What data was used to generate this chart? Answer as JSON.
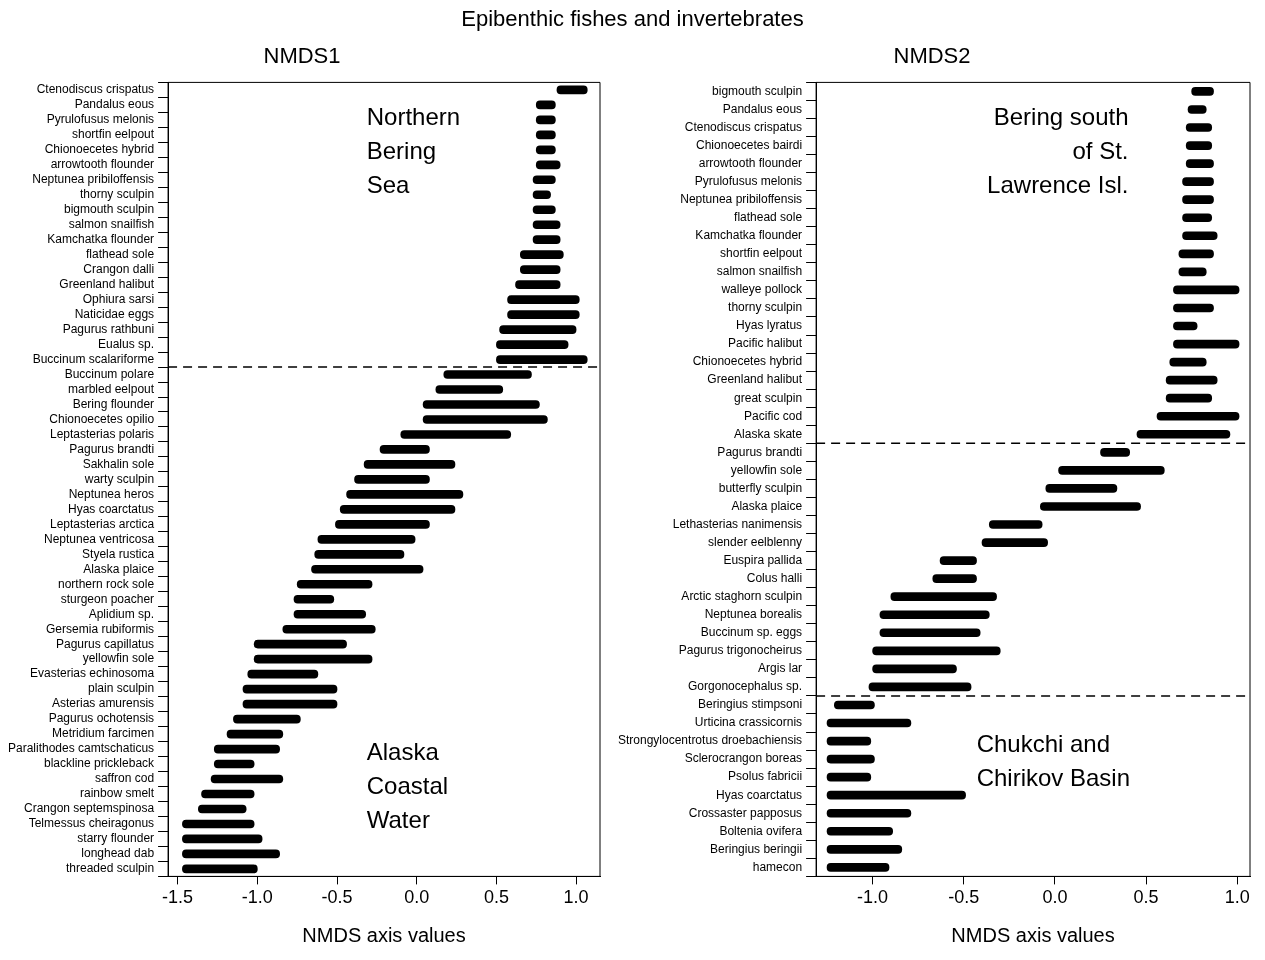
{
  "chart_data": [
    {
      "type": "bar",
      "orientation": "horizontal",
      "title": "NMDS1",
      "subtitle": "Epibenthic fishes and invertebrates",
      "xlabel": "NMDS axis values",
      "color": "#000000",
      "grid": false,
      "legend": false,
      "categories": [
        "Ctenodiscus crispatus",
        "Pandalus eous",
        "Pyrulofusus melonis",
        "shortfin eelpout",
        "Chionoecetes hybrid",
        "arrowtooth flounder",
        "Neptunea pribiloffensis",
        "thorny sculpin",
        "bigmouth sculpin",
        "salmon snailfish",
        "Kamchatka flounder",
        "flathead sole",
        "Crangon dalli",
        "Greenland halibut",
        "Ophiura sarsi",
        "Naticidae eggs",
        "Pagurus rathbuni",
        "Eualus sp.",
        "Buccinum scalariforme",
        "Buccinum polare",
        "marbled eelpout",
        "Bering flounder",
        "Chionoecetes opilio",
        "Leptasterias polaris",
        "Pagurus brandti",
        "Sakhalin sole",
        "warty sculpin",
        "Neptunea heros",
        "Hyas coarctatus",
        "Leptasterias arctica",
        "Neptunea ventricosa",
        "Styela rustica",
        "Alaska plaice",
        "northern rock sole",
        "sturgeon poacher",
        "Aplidium sp.",
        "Gersemia rubiformis",
        "Pagurus capillatus",
        "yellowfin sole",
        "Evasterias echinosoma",
        "plain sculpin",
        "Asterias amurensis",
        "Pagurus ochotensis",
        "Metridium farcimen",
        "Paralithodes camtschaticus",
        "blackline prickleback",
        "saffron cod",
        "rainbow smelt",
        "Crangon septemspinosa",
        "Telmessus cheiragonus",
        "starry flounder",
        "longhead dab",
        "threaded sculpin"
      ],
      "base": [
        0.88,
        0.75,
        0.75,
        0.75,
        0.75,
        0.75,
        0.73,
        0.73,
        0.73,
        0.73,
        0.73,
        0.65,
        0.65,
        0.62,
        0.57,
        0.57,
        0.52,
        0.5,
        0.5,
        0.17,
        0.12,
        0.04,
        0.04,
        -0.1,
        -0.23,
        -0.33,
        -0.39,
        -0.44,
        -0.48,
        -0.51,
        -0.62,
        -0.64,
        -0.66,
        -0.75,
        -0.77,
        -0.77,
        -0.84,
        -1.02,
        -1.02,
        -1.06,
        -1.09,
        -1.09,
        -1.15,
        -1.19,
        -1.27,
        -1.27,
        -1.29,
        -1.35,
        -1.37,
        -1.47,
        -1.47,
        -1.47,
        -1.47
      ],
      "values": [
        0.19,
        0.12,
        0.12,
        0.12,
        0.12,
        0.15,
        0.14,
        0.11,
        0.14,
        0.17,
        0.17,
        0.27,
        0.25,
        0.28,
        0.45,
        0.45,
        0.48,
        0.45,
        0.57,
        0.55,
        0.42,
        0.73,
        0.78,
        0.69,
        0.31,
        0.57,
        0.47,
        0.73,
        0.72,
        0.59,
        0.61,
        0.56,
        0.7,
        0.47,
        0.25,
        0.45,
        0.58,
        0.58,
        0.74,
        0.44,
        0.59,
        0.59,
        0.42,
        0.35,
        0.41,
        0.25,
        0.45,
        0.33,
        0.3,
        0.45,
        0.5,
        0.61,
        0.47
      ],
      "xlim": [
        -1.56,
        1.15
      ],
      "xticks": [
        -1.5,
        {
          "value": -1,
          "label": "-1.0"
        },
        -0.5,
        {
          "value": 0,
          "label": "0.0"
        },
        0.5,
        {
          "value": 1,
          "label": "1.0"
        }
      ],
      "ref_lines": [
        {
          "axis": "y",
          "value": "Buccinum scalariforme",
          "line_style": "dashed"
        }
      ],
      "annotations": [
        "Northern\nBering\nSea",
        "Alaska\nCoastal\nWater"
      ]
    },
    {
      "type": "bar",
      "orientation": "horizontal",
      "title": "NMDS2",
      "xlabel": "NMDS axis values",
      "color": "#000000",
      "grid": false,
      "legend": false,
      "categories": [
        "bigmouth sculpin",
        "Pandalus eous",
        "Ctenodiscus crispatus",
        "Chionoecetes bairdi",
        "arrowtooth flounder",
        "Pyrulofusus melonis",
        "Neptunea pribiloffensis",
        "flathead sole",
        "Kamchatka flounder",
        "shortfin eelpout",
        "salmon snailfish",
        "walleye pollock",
        "thorny sculpin",
        "Hyas lyratus",
        "Pacific halibut",
        "Chionoecetes hybrid",
        "Greenland halibut",
        "great sculpin",
        "Pacific cod",
        "Alaska skate",
        "Pagurus brandti",
        "yellowfin sole",
        "butterfly sculpin",
        "Alaska plaice",
        "Lethasterias nanimensis",
        "slender eelblenny",
        "Euspira pallida",
        "Colus halli",
        "Arctic staghorn sculpin",
        "Neptunea borealis",
        "Buccinum sp. eggs",
        "Pagurus trigonocheirus",
        "Argis lar",
        "Gorgonocephalus sp.",
        "Beringius stimpsoni",
        "Urticina crassicornis",
        "Strongylocentrotus droebachiensis",
        "Sclerocrangon boreas",
        "Psolus fabricii",
        "Hyas coarctatus",
        "Crossaster papposus",
        "Boltenia ovifera",
        "Beringius beringii",
        "hamecon"
      ],
      "base": [
        0.75,
        0.73,
        0.72,
        0.72,
        0.72,
        0.7,
        0.7,
        0.7,
        0.7,
        0.68,
        0.68,
        0.65,
        0.65,
        0.65,
        0.65,
        0.63,
        0.61,
        0.61,
        0.56,
        0.45,
        0.25,
        0.02,
        -0.05,
        -0.08,
        -0.36,
        -0.4,
        -0.63,
        -0.67,
        -0.9,
        -0.96,
        -0.96,
        -1,
        -1,
        -1.02,
        -1.21,
        -1.25,
        -1.25,
        -1.25,
        -1.25,
        -1.25,
        -1.25,
        -1.25,
        -1.25,
        -1.25
      ],
      "values": [
        0.12,
        0.1,
        0.14,
        0.14,
        0.15,
        0.17,
        0.17,
        0.16,
        0.19,
        0.19,
        0.15,
        0.36,
        0.22,
        0.13,
        0.36,
        0.2,
        0.28,
        0.25,
        0.45,
        0.51,
        0.16,
        0.58,
        0.39,
        0.55,
        0.29,
        0.36,
        0.2,
        0.24,
        0.58,
        0.6,
        0.55,
        0.7,
        0.46,
        0.56,
        0.22,
        0.46,
        0.24,
        0.26,
        0.24,
        0.76,
        0.46,
        0.36,
        0.41,
        0.34
      ],
      "xlim": [
        -1.31,
        1.07
      ],
      "xticks": [
        {
          "value": -1,
          "label": "-1.0"
        },
        -0.5,
        {
          "value": 0,
          "label": "0.0"
        },
        0.5,
        {
          "value": 1,
          "label": "1.0"
        }
      ],
      "ref_lines": [
        {
          "axis": "y",
          "value": "Alaska skate",
          "line_style": "dashed"
        },
        {
          "axis": "y",
          "value": "Gorgonocephalus sp.",
          "line_style": "dashed"
        }
      ],
      "annotations": [
        "Bering south\nof St.\nLawrence Isl.",
        "Chukchi and\nChirikov Basin"
      ]
    }
  ]
}
